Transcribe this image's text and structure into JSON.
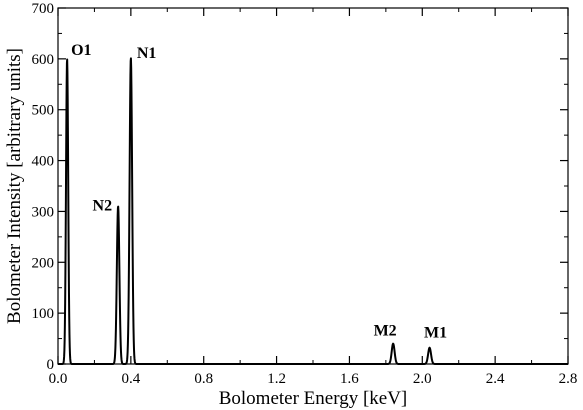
{
  "chart_data": {
    "type": "line",
    "title": "",
    "xlabel": "Bolometer Energy [keV]",
    "ylabel": "Bolometer Intensity [arbitrary units]",
    "xlim": [
      0.0,
      2.8
    ],
    "ylim": [
      0,
      700
    ],
    "xticks": [
      0.0,
      0.4,
      0.8,
      1.2,
      1.6,
      2.0,
      2.4,
      2.8
    ],
    "xtick_labels": [
      "0.0",
      "0.4",
      "0.8",
      "1.2",
      "1.6",
      "2.0",
      "2.4",
      "2.8"
    ],
    "yticks": [
      0,
      100,
      200,
      300,
      400,
      500,
      600,
      700
    ],
    "ytick_labels": [
      "0",
      "100",
      "200",
      "300",
      "400",
      "500",
      "600",
      "700"
    ],
    "grid": false,
    "line_color": "#000000",
    "series": [
      {
        "peaks": [
          {
            "label": "O1",
            "x": 0.05,
            "y": 600,
            "width": 0.006
          },
          {
            "label": "N2",
            "x": 0.33,
            "y": 310,
            "width": 0.007
          },
          {
            "label": "N1",
            "x": 0.4,
            "y": 602,
            "width": 0.007
          },
          {
            "label": "M2",
            "x": 1.84,
            "y": 40,
            "width": 0.008
          },
          {
            "label": "M1",
            "x": 2.04,
            "y": 32,
            "width": 0.008
          }
        ]
      }
    ]
  }
}
